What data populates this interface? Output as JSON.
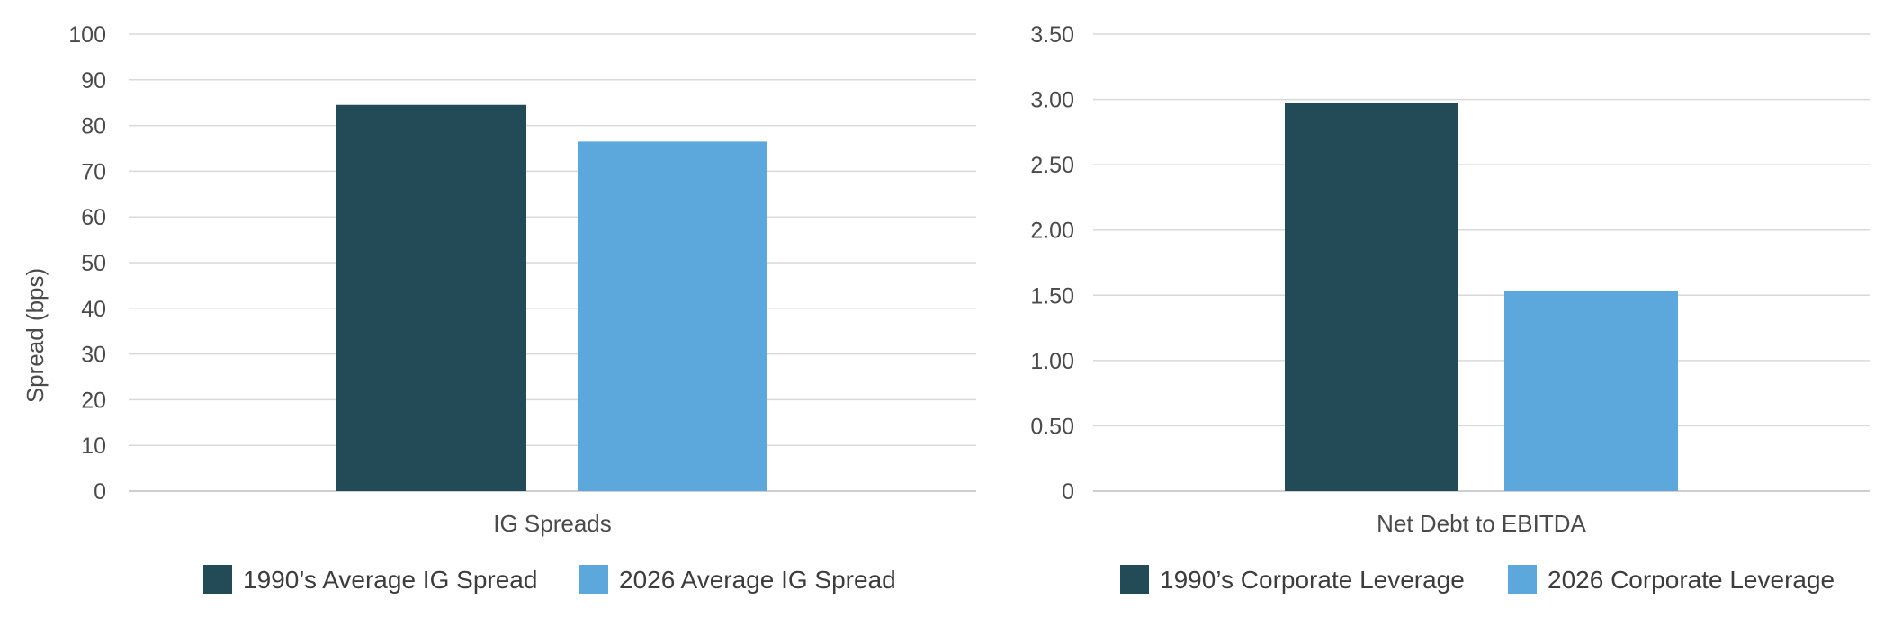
{
  "chart_data": [
    {
      "type": "bar",
      "categories": [
        "IG Spreads"
      ],
      "series": [
        {
          "name": "1990’s Average IG Spread",
          "values": [
            84.5
          ],
          "color": "#234a57"
        },
        {
          "name": "2026 Average IG Spread",
          "values": [
            76.5
          ],
          "color": "#5ca8dc"
        }
      ],
      "ylabel": "Spread (bps)",
      "ylim": [
        0,
        100
      ],
      "yticks": [
        "0",
        "10",
        "20",
        "30",
        "40",
        "50",
        "60",
        "70",
        "80",
        "90",
        "100"
      ],
      "grid": true,
      "legend": "bottom"
    },
    {
      "type": "bar",
      "categories": [
        "Net Debt to EBITDA"
      ],
      "series": [
        {
          "name": "1990’s Corporate Leverage",
          "values": [
            2.97
          ],
          "color": "#234a57"
        },
        {
          "name": "2026 Corporate Leverage",
          "values": [
            1.53
          ],
          "color": "#5ca8dc"
        }
      ],
      "ylabel": "",
      "ylim": [
        0,
        3.5
      ],
      "yticks": [
        "0",
        "0.50",
        "1.00",
        "1.50",
        "2.00",
        "2.50",
        "3.00",
        "3.50"
      ],
      "grid": true,
      "legend": "bottom"
    }
  ]
}
